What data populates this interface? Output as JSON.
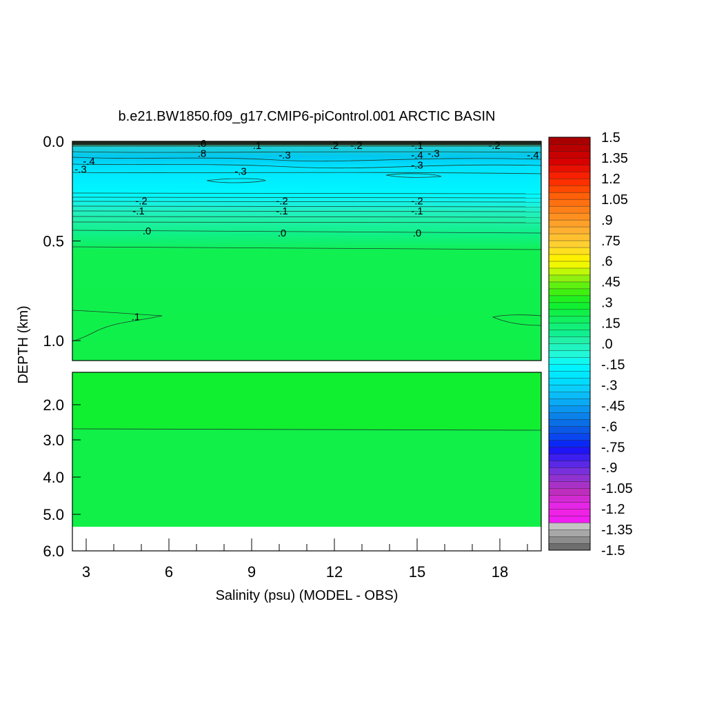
{
  "chart_data": {
    "type": "heatmap",
    "title": "b.e21.BW1850.f09_g17.CMIP6-piControl.001 ARCTIC BASIN",
    "xlabel": "Salinity (psu) (MODEL - OBS)",
    "ylabel": "DEPTH (km)",
    "x_ticks": [
      "3",
      "6",
      "9",
      "12",
      "15",
      "18"
    ],
    "x_tick_values": [
      3,
      6,
      9,
      12,
      15,
      18
    ],
    "xlim": [
      2.5,
      19.5
    ],
    "upper_panel": {
      "ylim": [
        0.0,
        1.1
      ],
      "y_ticks": [
        "0.0",
        "0.5",
        "1.0"
      ],
      "y_tick_values": [
        0.0,
        0.5,
        1.0
      ]
    },
    "lower_panel": {
      "ylim": [
        1.1,
        6.0
      ],
      "y_ticks": [
        "2.0",
        "3.0",
        "4.0",
        "5.0",
        "6.0"
      ],
      "y_tick_values": [
        2.0,
        3.0,
        4.0,
        5.0,
        6.0
      ]
    },
    "colorbar": {
      "labels": [
        "1.5",
        "1.35",
        "1.2",
        "1.05",
        ".9",
        ".75",
        ".6",
        ".45",
        ".3",
        ".15",
        ".0",
        "-.15",
        "-.3",
        "-.45",
        "-.6",
        "-.75",
        "-.9",
        "-1.05",
        "-1.2",
        "-1.35",
        "-1.5"
      ],
      "min": -1.5,
      "max": 1.5,
      "step": 0.05,
      "colors": [
        "#6e6e6e",
        "#8c8c8c",
        "#a8a8a8",
        "#c4c4c4",
        "#f01ef0",
        "#f022e6",
        "#e626e6",
        "#d22ad2",
        "#be2ebe",
        "#a832c8",
        "#9032d0",
        "#7830dc",
        "#5a28e6",
        "#3c1ef0",
        "#1e14f5",
        "#0a28f5",
        "#0a46f0",
        "#0a5ae6",
        "#0a6ee6",
        "#0a82ea",
        "#0a96f0",
        "#0aaaf5",
        "#0abcf8",
        "#0acefa",
        "#00dcff",
        "#00e8ff",
        "#00f4ff",
        "#10f8f0",
        "#20f8d8",
        "#20f4c0",
        "#20f0a8",
        "#10f090",
        "#10f078",
        "#10f060",
        "#10f048",
        "#10f030",
        "#20f020",
        "#40f010",
        "#60f010",
        "#90f010",
        "#c0f808",
        "#f0f800",
        "#fff000",
        "#ffe020",
        "#ffd030",
        "#ffc030",
        "#ffb030",
        "#ffa028",
        "#ff9020",
        "#ff8018",
        "#ff7010",
        "#ff6008",
        "#ff4800",
        "#ff3000",
        "#f82000",
        "#e81000",
        "#d80000",
        "#c80000",
        "#b80000",
        "#a80000"
      ]
    },
    "contours": [
      {
        "label": ".6",
        "x": 7.2,
        "depth": 0.01
      },
      {
        "label": ".8",
        "x": 7.2,
        "depth": 0.06
      },
      {
        "label": ".1",
        "x": 9.2,
        "depth": 0.02
      },
      {
        "label": "-.3",
        "x": 10.2,
        "depth": 0.07
      },
      {
        "label": ".2",
        "x": 12.0,
        "depth": 0.02
      },
      {
        "label": "-.2",
        "x": 12.8,
        "depth": 0.02
      },
      {
        "label": "-.1",
        "x": 15.0,
        "depth": 0.02
      },
      {
        "label": "-.3",
        "x": 15.6,
        "depth": 0.06
      },
      {
        "label": "-.4",
        "x": 15.0,
        "depth": 0.07
      },
      {
        "label": "-.3",
        "x": 15.0,
        "depth": 0.12
      },
      {
        "label": "-.2",
        "x": 17.8,
        "depth": 0.02
      },
      {
        "label": "-.4",
        "x": 19.2,
        "depth": 0.07
      },
      {
        "label": "-.4",
        "x": 3.1,
        "depth": 0.1
      },
      {
        "label": "-.3",
        "x": 2.8,
        "depth": 0.14
      },
      {
        "label": "-.3",
        "x": 8.6,
        "depth": 0.15
      },
      {
        "label": "-.2",
        "x": 5.0,
        "depth": 0.3
      },
      {
        "label": "-.1",
        "x": 4.9,
        "depth": 0.35
      },
      {
        "label": "-.2",
        "x": 10.1,
        "depth": 0.3
      },
      {
        "label": "-.1",
        "x": 10.1,
        "depth": 0.35
      },
      {
        "label": "-.2",
        "x": 15.0,
        "depth": 0.3
      },
      {
        "label": "-.1",
        "x": 15.0,
        "depth": 0.35
      },
      {
        "label": ".0",
        "x": 5.2,
        "depth": 0.45
      },
      {
        "label": ".0",
        "x": 10.1,
        "depth": 0.46
      },
      {
        "label": ".0",
        "x": 15.0,
        "depth": 0.46
      },
      {
        "label": ".1",
        "x": 4.8,
        "depth": 0.88
      }
    ]
  }
}
